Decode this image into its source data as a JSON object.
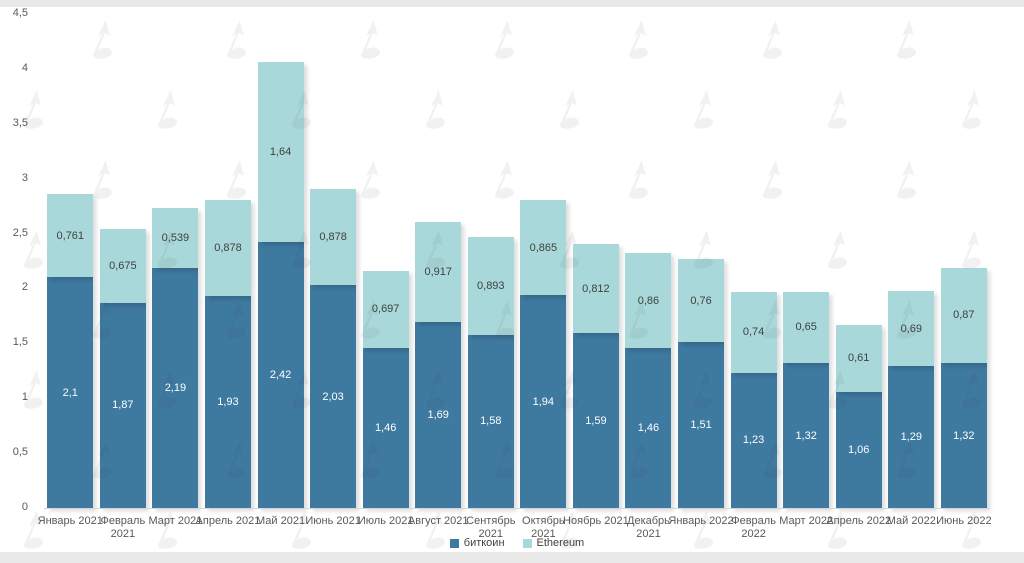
{
  "window": {
    "frame_color": "#e9e9e9",
    "background_color": "#ffffff"
  },
  "watermark": {
    "icon": "logo-watermark",
    "color": "#404040",
    "opacity": 0.07
  },
  "legend": {
    "items": [
      {
        "label": "биткоин",
        "color": "#3e79a0"
      },
      {
        "label": "Ethereum",
        "color": "#a9d8da"
      }
    ]
  },
  "chart_data": {
    "type": "bar",
    "stacked": true,
    "title": "",
    "xlabel": "",
    "ylabel": "",
    "ylim": [
      0,
      4.5
    ],
    "grid": false,
    "legend_position": "bottom-center",
    "decimal_separator": ",",
    "yticks": [
      "0",
      "0,5",
      "1",
      "1,5",
      "2",
      "2,5",
      "3",
      "3,5",
      "4",
      "4,5"
    ],
    "categories": [
      "Январь 2021",
      "Февраль\n2021",
      "Март 2021",
      "Апрель 2021",
      "Май 2021",
      "Июнь 2021",
      "Июль 2021",
      "Август 2021",
      "Сентябрь\n2021",
      "Октябрь\n2021",
      "Ноябрь 2021",
      "Декабрь\n2021",
      "Январь 2022",
      "Февраль\n2022",
      "Март 2022",
      "Апрель 2022",
      "Май 2022",
      "Июнь 2022"
    ],
    "series": [
      {
        "name": "биткоин",
        "color": "#3e79a0",
        "label_color": "#ffffff",
        "values": [
          2.1,
          1.87,
          2.19,
          1.93,
          2.42,
          2.03,
          1.46,
          1.69,
          1.58,
          1.94,
          1.59,
          1.46,
          1.51,
          1.23,
          1.32,
          1.06,
          1.29,
          1.32
        ],
        "value_labels": [
          "2,1",
          "1,87",
          "2,19",
          "1,93",
          "2,42",
          "2,03",
          "1,46",
          "1,69",
          "1,58",
          "1,94",
          "1,59",
          "1,46",
          "1,51",
          "1,23",
          "1,32",
          "1,06",
          "1,29",
          "1,32"
        ]
      },
      {
        "name": "Ethereum",
        "color": "#a9d8da",
        "label_color": "#3f3f3f",
        "values": [
          0.761,
          0.675,
          0.539,
          0.878,
          1.64,
          0.878,
          0.697,
          0.917,
          0.893,
          0.865,
          0.812,
          0.86,
          0.76,
          0.74,
          0.65,
          0.61,
          0.69,
          0.87
        ],
        "value_labels": [
          "0,761",
          "0,675",
          "0,539",
          "0,878",
          "1,64",
          "0,878",
          "0,697",
          "0,917",
          "0,893",
          "0,865",
          "0,812",
          "0,86",
          "0,76",
          "0,74",
          "0,65",
          "0,61",
          "0,69",
          "0,87"
        ]
      }
    ]
  }
}
